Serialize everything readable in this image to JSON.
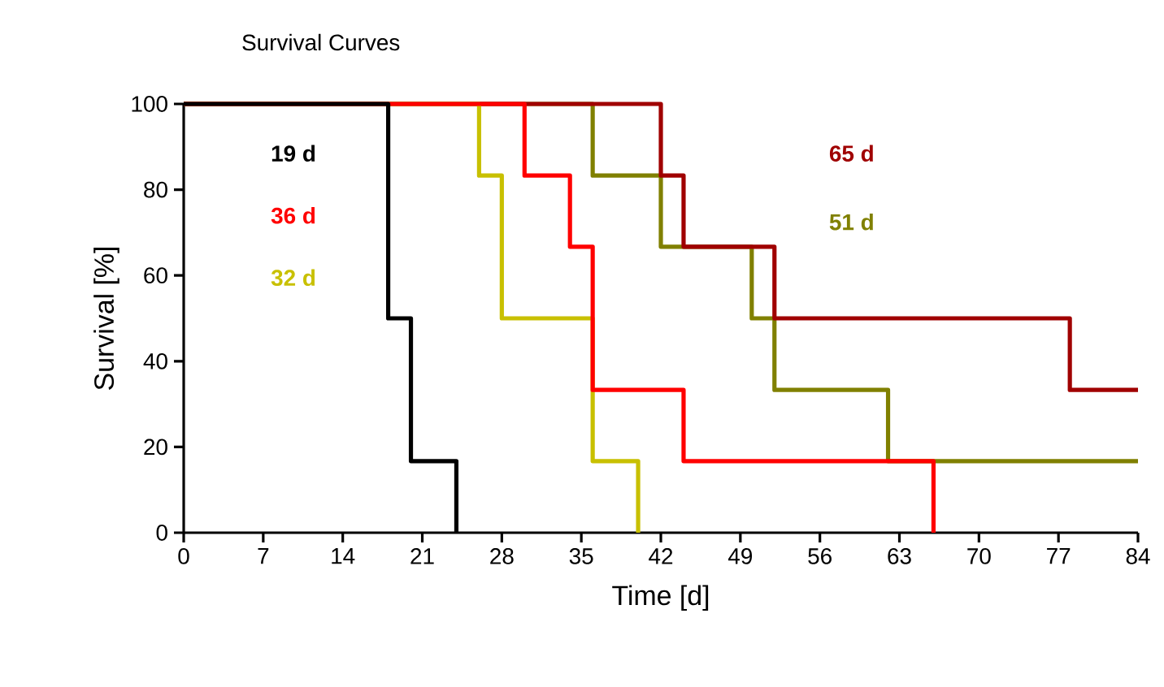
{
  "chart_data": {
    "type": "step",
    "title": "Survival Curves",
    "xlabel": "Time [d]",
    "ylabel": "Survival [%]",
    "xlim": [
      0,
      84
    ],
    "xticks": [
      0,
      7,
      14,
      21,
      28,
      35,
      42,
      49,
      56,
      63,
      70,
      77,
      84
    ],
    "ylim": [
      0,
      100
    ],
    "yticks": [
      0,
      20,
      40,
      60,
      80,
      100
    ],
    "grid": false,
    "marker": "none",
    "line_style": "solid",
    "series": [
      {
        "color": "#000000",
        "x": [
          0,
          18,
          20,
          24
        ],
        "values": [
          100,
          50,
          16.7,
          0
        ]
      },
      {
        "color": "#ff0000",
        "x": [
          0,
          30,
          34,
          36,
          44,
          66
        ],
        "values": [
          100,
          83.3,
          66.7,
          33.3,
          16.7,
          0
        ]
      },
      {
        "color": "#c8c000",
        "x": [
          0,
          26,
          28,
          36,
          40
        ],
        "values": [
          100,
          83.3,
          50,
          16.7,
          0
        ]
      },
      {
        "color": "#a00000",
        "x": [
          0,
          42,
          44,
          52,
          78,
          84
        ],
        "values": [
          100,
          83.3,
          66.7,
          50,
          33.3,
          33.3
        ]
      },
      {
        "color": "#808000",
        "x": [
          0,
          36,
          42,
          50,
          52,
          62,
          84
        ],
        "values": [
          100,
          83.3,
          66.7,
          50,
          33.3,
          16.7,
          16.7
        ]
      }
    ],
    "annotations": [
      "19 d",
      "36 d",
      "32 d",
      "65 d",
      "51 d"
    ]
  }
}
